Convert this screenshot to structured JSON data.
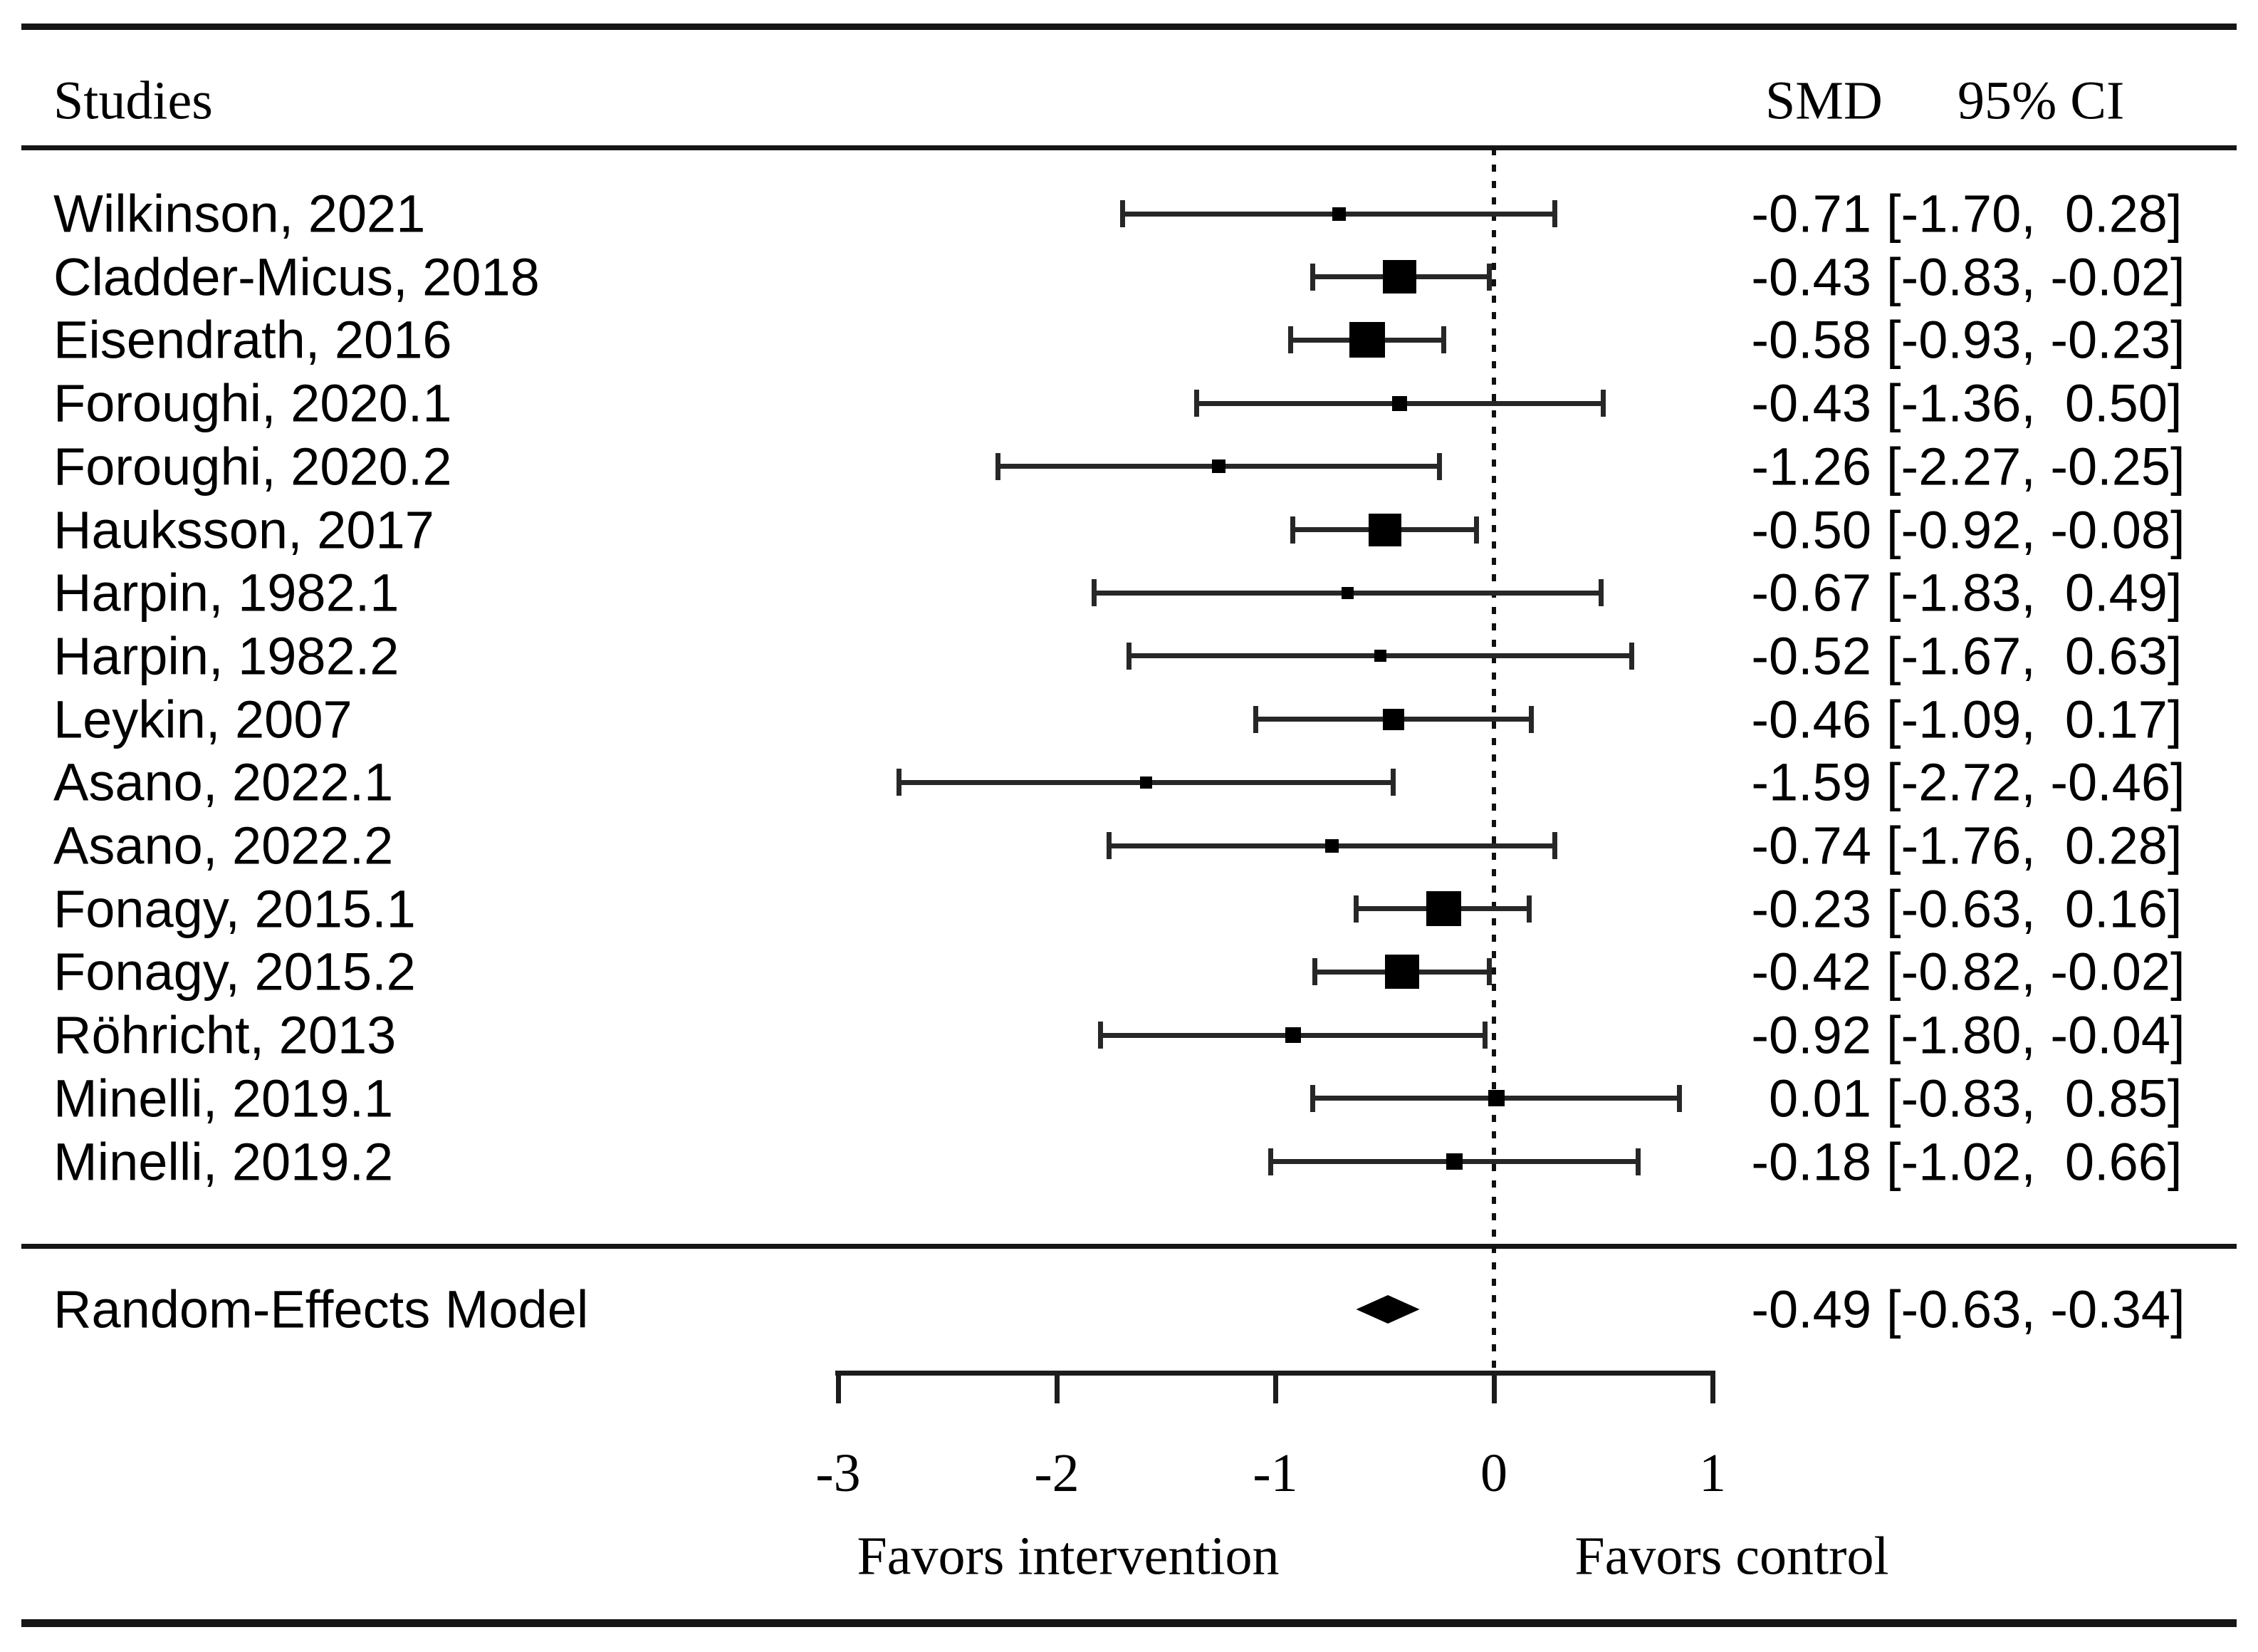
{
  "header": {
    "studies_label": "Studies",
    "smd_label": "SMD",
    "ci_label": "95% CI"
  },
  "chart_data": {
    "type": "forest",
    "effect_measure": "SMD",
    "x_ticks": [
      -3,
      -2,
      -1,
      0,
      1
    ],
    "x_tick_labels": [
      "-3",
      "-2",
      "-1",
      "0",
      "1"
    ],
    "xlim": [
      -3,
      1
    ],
    "zero_reference_line": 0,
    "favors_left": "Favors intervention",
    "favors_right": "Favors control",
    "studies": [
      {
        "label": "Wilkinson, 2021",
        "smd": -0.71,
        "ci_low": -1.7,
        "ci_high": 0.28,
        "smd_text": "-0.71",
        "ci_text": "[-1.70,  0.28]"
      },
      {
        "label": "Cladder-Micus, 2018",
        "smd": -0.43,
        "ci_low": -0.83,
        "ci_high": -0.02,
        "smd_text": "-0.43",
        "ci_text": "[-0.83, -0.02]"
      },
      {
        "label": "Eisendrath, 2016",
        "smd": -0.58,
        "ci_low": -0.93,
        "ci_high": -0.23,
        "smd_text": "-0.58",
        "ci_text": "[-0.93, -0.23]"
      },
      {
        "label": "Foroughi, 2020.1",
        "smd": -0.43,
        "ci_low": -1.36,
        "ci_high": 0.5,
        "smd_text": "-0.43",
        "ci_text": "[-1.36,  0.50]"
      },
      {
        "label": "Foroughi, 2020.2",
        "smd": -1.26,
        "ci_low": -2.27,
        "ci_high": -0.25,
        "smd_text": "-1.26",
        "ci_text": "[-2.27, -0.25]"
      },
      {
        "label": "Hauksson, 2017",
        "smd": -0.5,
        "ci_low": -0.92,
        "ci_high": -0.08,
        "smd_text": "-0.50",
        "ci_text": "[-0.92, -0.08]"
      },
      {
        "label": "Harpin, 1982.1",
        "smd": -0.67,
        "ci_low": -1.83,
        "ci_high": 0.49,
        "smd_text": "-0.67",
        "ci_text": "[-1.83,  0.49]"
      },
      {
        "label": "Harpin, 1982.2",
        "smd": -0.52,
        "ci_low": -1.67,
        "ci_high": 0.63,
        "smd_text": "-0.52",
        "ci_text": "[-1.67,  0.63]"
      },
      {
        "label": "Leykin, 2007",
        "smd": -0.46,
        "ci_low": -1.09,
        "ci_high": 0.17,
        "smd_text": "-0.46",
        "ci_text": "[-1.09,  0.17]"
      },
      {
        "label": "Asano, 2022.1",
        "smd": -1.59,
        "ci_low": -2.72,
        "ci_high": -0.46,
        "smd_text": "-1.59",
        "ci_text": "[-2.72, -0.46]"
      },
      {
        "label": "Asano, 2022.2",
        "smd": -0.74,
        "ci_low": -1.76,
        "ci_high": 0.28,
        "smd_text": "-0.74",
        "ci_text": "[-1.76,  0.28]"
      },
      {
        "label": "Fonagy, 2015.1",
        "smd": -0.23,
        "ci_low": -0.63,
        "ci_high": 0.16,
        "smd_text": "-0.23",
        "ci_text": "[-0.63,  0.16]"
      },
      {
        "label": "Fonagy, 2015.2",
        "smd": -0.42,
        "ci_low": -0.82,
        "ci_high": -0.02,
        "smd_text": "-0.42",
        "ci_text": "[-0.82, -0.02]"
      },
      {
        "label": "Röhricht, 2013",
        "smd": -0.92,
        "ci_low": -1.8,
        "ci_high": -0.04,
        "smd_text": "-0.92",
        "ci_text": "[-1.80, -0.04]"
      },
      {
        "label": "Minelli, 2019.1",
        "smd": 0.01,
        "ci_low": -0.83,
        "ci_high": 0.85,
        "smd_text": "0.01",
        "ci_text": "[-0.83,  0.85]"
      },
      {
        "label": "Minelli, 2019.2",
        "smd": -0.18,
        "ci_low": -1.02,
        "ci_high": 0.66,
        "smd_text": "-0.18",
        "ci_text": "[-1.02,  0.66]"
      }
    ],
    "summary": {
      "label": "Random-Effects Model",
      "smd": -0.49,
      "ci_low": -0.63,
      "ci_high": -0.34,
      "smd_text": "-0.49",
      "ci_text": "[-0.63, -0.34]"
    }
  },
  "colors": {
    "ink": "#000000",
    "line": "#1c1c1c"
  }
}
